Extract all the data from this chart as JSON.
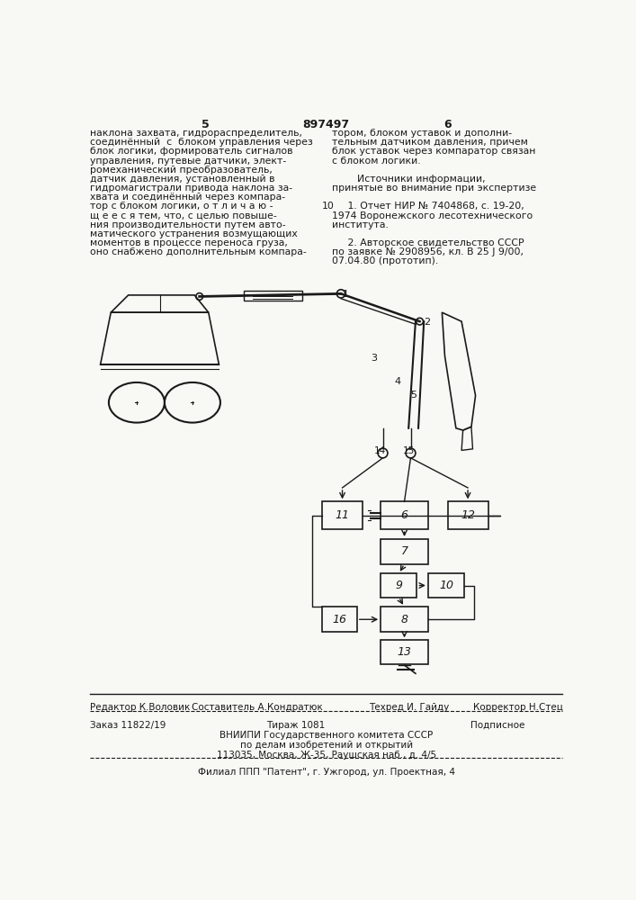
{
  "patent_number": "897497",
  "page_left": "5",
  "page_right": "6",
  "bg_color": "#f8f8f4",
  "text_color": "#1a1a1a",
  "left_col_text": [
    "наклона захвата, гидрораспределитель,",
    "соединённый  с  блоком управления через",
    "блок логики, формирователь сигналов",
    "управления, путевые датчики, элект-",
    "ромеханический преобразователь,",
    "датчик давления, установленный в",
    "гидромагистрали привода наклона за-",
    "хвата и соединённый через компара-",
    "тор с блоком логики, о т л и ч а ю -",
    "щ е е с я тем, что, с целью повыше-",
    "ния производительности путем авто-",
    "матического устранения возмущающих",
    "моментов в процессе переноса груза,",
    "оно снабжено дополнительным компара-"
  ],
  "right_col_text": [
    "тором, блоком уставок и дополни-",
    "тельным датчиком давления, причем",
    "блок уставок через компаратор связан",
    "с блоком логики.",
    "",
    "        Источники информации,",
    "принятые во внимание при экспертизе",
    "",
    "     1. Отчет НИР № 7404868, с. 19-20,",
    "1974 Воронежского лесотехнического",
    "института.",
    "",
    "     2. Авторское свидетельство СССР",
    "по заявке № 2908956, кл. В 25 J 9/00,",
    "07.04.80 (прототип)."
  ],
  "left_number": "10",
  "bottom_editor": "Редактор К.Воловик",
  "bottom_composer": "Составитель А.Кондратюк",
  "bottom_techred": "Техред И. Гайду",
  "bottom_corrector": "Корректор Н.Стец",
  "bottom_order": "Заказ 11822/19",
  "bottom_tirazh": "Тираж 1081",
  "bottom_podpis": "Подписное",
  "bottom_vnipi": "ВНИИПИ Государственного комитета СССР",
  "bottom_po_delam": "по делам изобретений и открытий",
  "bottom_address": "113035, Москва, Ж-35, Раушская наб., д. 4/5",
  "bottom_filial": "Филиал ППП \"Патент\", г. Ужгород, ул. Проектная, 4"
}
